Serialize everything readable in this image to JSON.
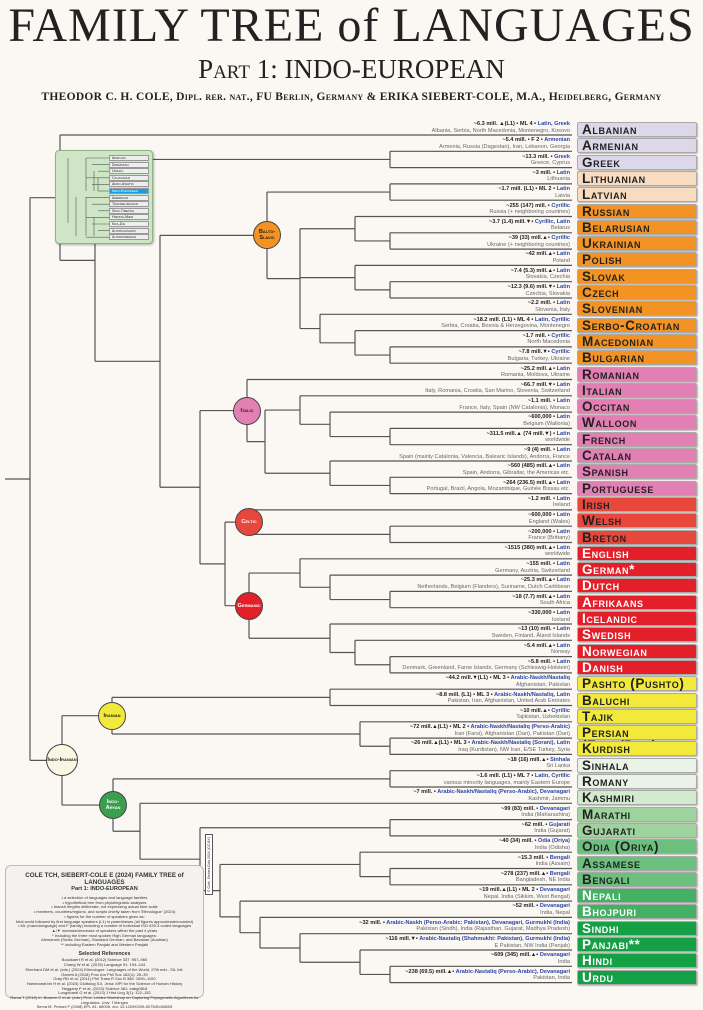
{
  "header": {
    "title": "FAMILY TREE of LANGUAGES",
    "subtitle": "Part 1: INDO-EUROPEAN",
    "authors": "THEODOR C. H. COLE, Dipl. rer. nat., FU Berlin, Germany & ERIKA SIEBERT-COLE, M.A., Heidelberg, Germany"
  },
  "colors": {
    "lavender": "#dcd8ea",
    "peach": "#f9dcc0",
    "orange": "#f39323",
    "pink": "#e27fb3",
    "celtic": "#e8473c",
    "germanic": "#e3202a",
    "yellow": "#f3e93a",
    "ia1": "#e9f4e6",
    "ia2": "#d2ebcf",
    "ia3": "#9ed39d",
    "ia4": "#6cc07d",
    "ia5": "#44b064",
    "ia6": "#16a046",
    "line": "#555555"
  },
  "clades": {
    "balto_slavic": "Balto-Slavic",
    "italic": "Italic",
    "celtic": "Celtic",
    "germanic": "Germanic",
    "iranian": "Iranian",
    "indo_iranian": "Indo-Iranian",
    "indo_aryan": "Indo-Aryan"
  },
  "inset": {
    "items": [
      "African",
      "Dravidian",
      "Uralic",
      "Caucasian",
      "Afro-Asiatic",
      "Indo-European",
      "American",
      "Transeurasian",
      "Sino-Tibetan",
      "Hmong-Mien",
      "Kra-Dai",
      "Austroasiatic",
      "Austronesian"
    ],
    "selected": "Indo-European"
  },
  "languages": [
    {
      "name": "Albanian",
      "speakers": "~6.3 mill. ▲(L1) • ML 4 •",
      "script": "Latin, Greek",
      "regions": "Albania, Serbia, North Macedonia, Montenegro, Kosovo",
      "color": "lavender"
    },
    {
      "name": "Armenian",
      "speakers": "~5.4 mill. • F 2 •",
      "script": "Armenian",
      "regions": "Armenia, Russia (Dagestan), Iran, Lebanon, Georgia",
      "color": "lavender"
    },
    {
      "name": "Greek",
      "speakers": "~13.3 mill. •",
      "script": "Greek",
      "regions": "Greece, Cyprus",
      "color": "lavender"
    },
    {
      "name": "Lithuanian",
      "speakers": "~3 mill. •",
      "script": "Latin",
      "regions": "Lithuania",
      "color": "peach"
    },
    {
      "name": "Latvian",
      "speakers": "~1.7 mill. (L1) • ML 2 •",
      "script": "Latin",
      "regions": "Latvia",
      "color": "peach"
    },
    {
      "name": "Russian",
      "speakers": "~255 (147) mill. •",
      "script": "Cyrillic",
      "regions": "Russia (+ neighboring countries)",
      "color": "orange"
    },
    {
      "name": "Belarusian",
      "speakers": "~3.7 (1.4) mill.▼•",
      "script": "Cyrillic, Latin",
      "regions": "Belarus",
      "color": "orange"
    },
    {
      "name": "Ukrainian",
      "speakers": "~39 (33) mill.▲•",
      "script": "Cyrillic",
      "regions": "Ukraine (+ neighboring countries)",
      "color": "orange"
    },
    {
      "name": "Polish",
      "speakers": "~42 mill.▲•",
      "script": "Latin",
      "regions": "Poland",
      "color": "orange"
    },
    {
      "name": "Slovak",
      "speakers": "~7.4 (5.3) mill.▲•",
      "script": "Latin",
      "regions": "Slovakia, Czechia",
      "color": "orange"
    },
    {
      "name": "Czech",
      "speakers": "~12.3 (9.6) mill.▼•",
      "script": "Latin",
      "regions": "Czechia, Slovakia",
      "color": "orange"
    },
    {
      "name": "Slovenian",
      "speakers": "~2.2 mill. •",
      "script": "Latin",
      "regions": "Slovenia, Italy",
      "color": "orange"
    },
    {
      "name": "Serbo-Croatian",
      "speakers": "~18.2 mill. (L1) • ML 4 •",
      "script": "Latin, Cyrillic",
      "regions": "Serbia, Croatia, Bosnia & Herzegovina, Montenegro",
      "color": "orange"
    },
    {
      "name": "Macedonian",
      "speakers": "~1.7 mill. •",
      "script": "Cyrillic",
      "regions": "North Macedonia",
      "color": "orange"
    },
    {
      "name": "Bulgarian",
      "speakers": "~7.8 mill.▼•",
      "script": "Cyrillic",
      "regions": "Bulgaria, Turkey, Ukraine",
      "color": "orange"
    },
    {
      "name": "Romanian",
      "speakers": "~25.2 mill.▲•",
      "script": "Latin",
      "regions": "Romania, Moldova, Ukraine",
      "color": "pink"
    },
    {
      "name": "Italian",
      "speakers": "~66.7 mill.▼•",
      "script": "Latin",
      "regions": "Italy, Romania, Croatia, San Marino, Slovenia, Switzerland",
      "color": "pink"
    },
    {
      "name": "Occitan",
      "speakers": "~1.1 mill. •",
      "script": "Latin",
      "regions": "France, Italy, Spain (NW Catalonia), Monaco",
      "color": "pink"
    },
    {
      "name": "Walloon",
      "speakers": "~600,000 •",
      "script": "Latin",
      "regions": "Belgium (Wallonia)",
      "color": "pink"
    },
    {
      "name": "French",
      "speakers": "~311.5 mill.▲ (74 mill.▼) •",
      "script": "Latin",
      "regions": "worldwide",
      "color": "pink"
    },
    {
      "name": "Catalan",
      "speakers": "~9 (4) mill. •",
      "script": "Latin",
      "regions": "Spain (mainly Catalonia, Valencia, Balearic Islands), Andorra, France",
      "color": "pink"
    },
    {
      "name": "Spanish",
      "speakers": "~560 (485) mill.▲•",
      "script": "Latin",
      "regions": "Spain, Andorra, Gibraltar, the Americas etc.",
      "color": "pink"
    },
    {
      "name": "Portuguese",
      "speakers": "~264 (236.5) mill.▲•",
      "script": "Latin",
      "regions": "Portugal, Brazil, Angola, Mozambique, Guinée Bissau etc.",
      "color": "pink"
    },
    {
      "name": "Irish",
      "speakers": "~1.2 mill. •",
      "script": "Latin",
      "regions": "Ireland",
      "color": "celtic"
    },
    {
      "name": "Welsh",
      "speakers": "~600,000 •",
      "script": "Latin",
      "regions": "England (Wales)",
      "color": "celtic"
    },
    {
      "name": "Breton",
      "speakers": "~200,000 •",
      "script": "Latin",
      "regions": "France (Brittany)",
      "color": "celtic"
    },
    {
      "name": "English",
      "speakers": "~1515 (380) mill.▲•",
      "script": "Latin",
      "regions": "worldwide",
      "color": "germanic",
      "white": true
    },
    {
      "name": "German*",
      "speakers": "~155 mill. •",
      "script": "Latin",
      "regions": "Germany, Austria, Switzerland",
      "color": "germanic",
      "white": true
    },
    {
      "name": "Dutch",
      "speakers": "~25.3 mill.▲•",
      "script": "Latin",
      "regions": "Netherlands, Belgium (Flanders), Suriname, Dutch Caribbean",
      "color": "germanic",
      "white": true
    },
    {
      "name": "Afrikaans",
      "speakers": "~18 (7.7) mill.▲•",
      "script": "Latin",
      "regions": "South Africa",
      "color": "germanic",
      "white": true
    },
    {
      "name": "Icelandic",
      "speakers": "~330,000 •",
      "script": "Latin",
      "regions": "Iceland",
      "color": "germanic",
      "white": true
    },
    {
      "name": "Swedish",
      "speakers": "~13 (10) mill. •",
      "script": "Latin",
      "regions": "Sweden, Finland, Åland Islands",
      "color": "germanic",
      "white": true
    },
    {
      "name": "Norwegian",
      "speakers": "~5.4 mill.▲•",
      "script": "Latin",
      "regions": "Norway",
      "color": "germanic",
      "white": true
    },
    {
      "name": "Danish",
      "speakers": "~5.8 mill. •",
      "script": "Latin",
      "regions": "Denmark, Greenland, Faroe Islands, Germany (Schleswig-Holstein)",
      "color": "germanic",
      "white": true
    },
    {
      "name": "Pashto (Pushto)",
      "speakers": "~44.2 mill.▼(L1) • ML 3 •",
      "script": "Arabic-Naskh/Nastaliq",
      "regions": "Afghanistan, Pakistan",
      "color": "yellow"
    },
    {
      "name": "Baluchi",
      "speakers": "~8.8 mill. (L1) • ML 3 •",
      "script": "Arabic-Naskh/Nastaliq, Latin",
      "regions": "Pakistan, Iran, Afghanistan, United Arab Emirates",
      "color": "yellow"
    },
    {
      "name": "Tajik",
      "speakers": "~10 mill.▲•",
      "script": "Cyrillic",
      "regions": "Tajikistan, Uzbekistan",
      "color": "yellow"
    },
    {
      "name": "Persian (Farsi/Dari)",
      "speakers": "~72 mill.▲(L1) • ML 2 •",
      "script": "Arabic-Naskh/Nastaliq (Perso-Arabic)",
      "regions": "Iran (Farsi), Afghanistan (Dari), Pakistan (Dari)",
      "color": "yellow"
    },
    {
      "name": "Kurdish",
      "speakers": "~26 mill.▲(L1) • ML 3 •",
      "script": "Arabic-Naskh/Nastaliq (Sorani), Latin",
      "regions": "Iraq (Kurdistan), NW Iran, E/SE Turkey, Syria",
      "color": "yellow"
    },
    {
      "name": "Sinhala",
      "speakers": "~18 (16) mill.▲•",
      "script": "Sinhala",
      "regions": "Sri Lanka",
      "color": "ia1"
    },
    {
      "name": "Romany",
      "speakers": "~1.6 mill. (L1) • ML 7 •",
      "script": "Latin, Cyrillic",
      "regions": "various minority languages, mainly Eastern Europe",
      "color": "ia1"
    },
    {
      "name": "Kashmiri",
      "speakers": "~7 mill. •",
      "script": "Arabic-Naskh/Nastaliq (Perso-Arabic), Devanagari",
      "regions": "Kashmir, Jammu",
      "color": "ia2"
    },
    {
      "name": "Marathi",
      "speakers": "~99 (83) mill. •",
      "script": "Devanagari",
      "regions": "India (Maharashtra)",
      "color": "ia3"
    },
    {
      "name": "Gujarati",
      "speakers": "~62 mill. •",
      "script": "Gujarati",
      "regions": "India (Gujarat)",
      "color": "ia3"
    },
    {
      "name": "Odia (Oriya)",
      "speakers": "~40 (34) mill. •",
      "script": "Odia (Oriya)",
      "regions": "India (Odisha)",
      "color": "ia4"
    },
    {
      "name": "Assamese",
      "speakers": "~15.3 mill. •",
      "script": "Bengali",
      "regions": "India (Assam)",
      "color": "ia4"
    },
    {
      "name": "Bengali",
      "speakers": "~278 (237) mill.▲•",
      "script": "Bengali",
      "regions": "Bangladesh, NE India",
      "color": "ia4"
    },
    {
      "name": "Nepali",
      "speakers": "~19 mill.▲(L1) • ML 2 •",
      "script": "Devanagari",
      "regions": "Nepal, India (Sikkim, West Bengal)",
      "color": "ia5",
      "white": true
    },
    {
      "name": "Bhojpuri",
      "speakers": "~52 mill. •",
      "script": "Devanagari",
      "regions": "India, Nepal",
      "color": "ia5",
      "white": true
    },
    {
      "name": "Sindhi",
      "speakers": "~32 mill. •",
      "script": "Arabic-Naskh (Perso-Arabic: Pakistan), Devanagari, Gurmukhi (India)",
      "regions": "Pakistan (Sindh), India (Rajasthan, Gujarat, Madhya Pradesh)",
      "color": "ia6",
      "white": true
    },
    {
      "name": "Panjabi**",
      "speakers": "~116 mill.▼•",
      "script": "Arabic-Nastaliq (Shahmukhi: Pakistan), Gurmukhi (India)",
      "regions": "E Pakistan, NW India (Panjab)",
      "color": "ia6",
      "white": true
    },
    {
      "name": "Hindi",
      "speakers": "~609 (345) mill.▲•",
      "script": "Devanagari",
      "regions": "India",
      "color": "ia6",
      "white": true
    },
    {
      "name": "Urdu",
      "speakers": "~238 (69.5) mill.▲•",
      "script": "Arabic-Nastaliq (Perso-Arabic), Devanagari",
      "regions": "Pakistan, India",
      "color": "ia6",
      "white": true
    }
  ],
  "notes": {
    "title": "COLE TCH, SIEBERT-COLE E (2024) FAMILY TREE of LANGUAGES",
    "subtitle": "Part 1: INDO-EUROPEAN",
    "bullets": [
      "• a selection of languages and language families",
      "• hypothetical tree from phylolinguistic analyses",
      "• branch lengths deliberate, not expressing actual time scale",
      "• members, countries/regions, and scripts chiefly taken from 'Ethnologue' (2024)",
      "• figures for the number of speakers given as:",
      "total world followed by first language speakers (L1) in parentheses (all figures approximate/rounded)",
      "• ML (macrolanguage) and F (family) including a number of individual ISO 639-3 coded languages",
      "▲/▼ increase/decrease of speakers within the past 4 years",
      "* including the three most spoken High German languages:",
      "Alemannic (Swiss German), Standard German, and Bavarian (Austrian)",
      "** including Eastern Panjabi and Western Panjabi"
    ],
    "refs_title": "Selected References",
    "refs": [
      "Bouckaert R et al. (2012) Science 337: 957–960",
      "Chang W et al. (2015) Language 91: 194–244",
      "Eberhard DM et al. (eds.) (2024) Ethnologue: Languages of the World. 27th edn., SIL Intl.",
      "Garrett A (2018) Proc Am Phil Soc 162(1): 26–39",
      "Gray RD et al. (2011) Phil Trans R Soc B 366: 1090–1100",
      "Hammarström H et al. (2024) Glottolog 5.0, Jena: MPI for the Science of Human History",
      "Heggarty P et al. (2023) Science 381: eabg0818",
      "Longobardi G et al. (2013) J Hist Ling 3(1): 122–152",
      "Rama T (2018) In: Bowern C et al. (eds.) Proc. Leiden Workshop on Capturing Phylogenetic Algorithms for Linguistics. Univ. Tübingen",
      "Serva M, Petroni F (2008) EPL 81: 68005, doi: 10.1209/0295-5075/81/68005"
    ]
  },
  "copyright": "© Cole, Siebert-Cole 2024 (CC-BY)"
}
